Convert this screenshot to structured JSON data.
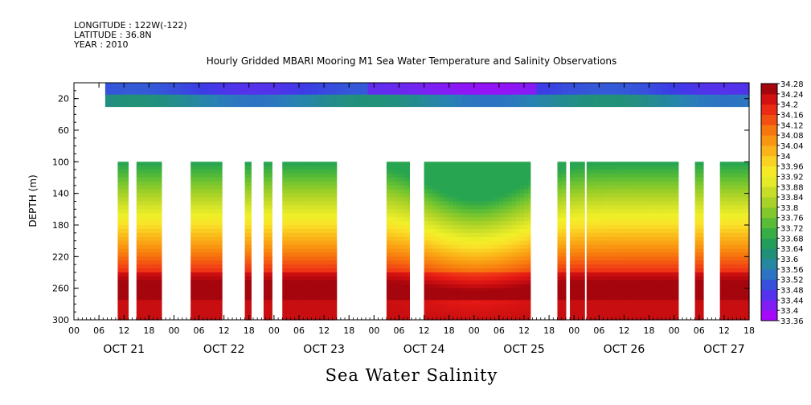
{
  "header": {
    "longitude": "LONGITUDE : 122W(-122)",
    "latitude": "LATITUDE : 36.8N",
    "year": "YEAR : 2010"
  },
  "chart_data": {
    "type": "heatmap",
    "title": "Hourly Gridded MBARI Mooring M1 Sea Water Temperature and Salinity Observations",
    "subtitle": "Sea Water Salinity",
    "ylabel": "DEPTH (m)",
    "xlabel": "",
    "x_unit": "hours since Oct 21 2010 00:00",
    "xlim": [
      0,
      162
    ],
    "ylim": [
      300,
      0
    ],
    "y_ticks": [
      20,
      60,
      100,
      140,
      180,
      220,
      260,
      300
    ],
    "x_tick_labels": [
      "00",
      "06",
      "12",
      "18",
      "00",
      "06",
      "12",
      "18",
      "00",
      "06",
      "12",
      "18",
      "00",
      "06",
      "12",
      "18",
      "00",
      "06",
      "12",
      "18",
      "00",
      "06",
      "12",
      "18",
      "00",
      "06",
      "12",
      "18"
    ],
    "day_labels": [
      "OCT 21",
      "OCT 22",
      "OCT 23",
      "OCT 24",
      "OCT 25",
      "OCT 26",
      "OCT 27"
    ],
    "colorbar": {
      "levels": [
        33.36,
        33.4,
        33.44,
        33.48,
        33.52,
        33.56,
        33.6,
        33.64,
        33.68,
        33.72,
        33.76,
        33.8,
        33.84,
        33.88,
        33.92,
        33.96,
        34,
        34.04,
        34.08,
        34.12,
        34.16,
        34.2,
        34.24,
        34.28
      ],
      "labels": [
        "34.28",
        "34.24",
        "34.2",
        "34.16",
        "34.12",
        "34.08",
        "34.04",
        "34",
        "33.96",
        "33.92",
        "33.88",
        "33.84",
        "33.8",
        "33.76",
        "33.72",
        "33.68",
        "33.64",
        "33.6",
        "33.56",
        "33.52",
        "33.48",
        "33.44",
        "33.4",
        "33.36"
      ]
    },
    "surface_layer": {
      "depth_range": [
        0,
        30
      ],
      "salinity_range": [
        33.4,
        33.64
      ],
      "missing_hours": [
        [
          0,
          7
        ]
      ]
    },
    "deep_layer": {
      "depth_range": [
        100,
        300
      ],
      "salinity_range": [
        33.68,
        34.26
      ],
      "data_hour_ranges": [
        [
          10.5,
          13
        ],
        [
          15,
          21
        ],
        [
          28,
          35.5
        ],
        [
          41,
          42.5
        ],
        [
          45.5,
          47.5
        ],
        [
          50,
          63
        ],
        [
          75,
          80.5
        ],
        [
          84,
          96
        ],
        [
          96,
          109.5
        ],
        [
          116,
          118
        ],
        [
          119,
          122.5
        ],
        [
          123,
          130
        ],
        [
          130,
          145
        ],
        [
          149,
          151
        ],
        [
          155,
          162
        ]
      ]
    },
    "grid": false,
    "legend_position": "right"
  }
}
